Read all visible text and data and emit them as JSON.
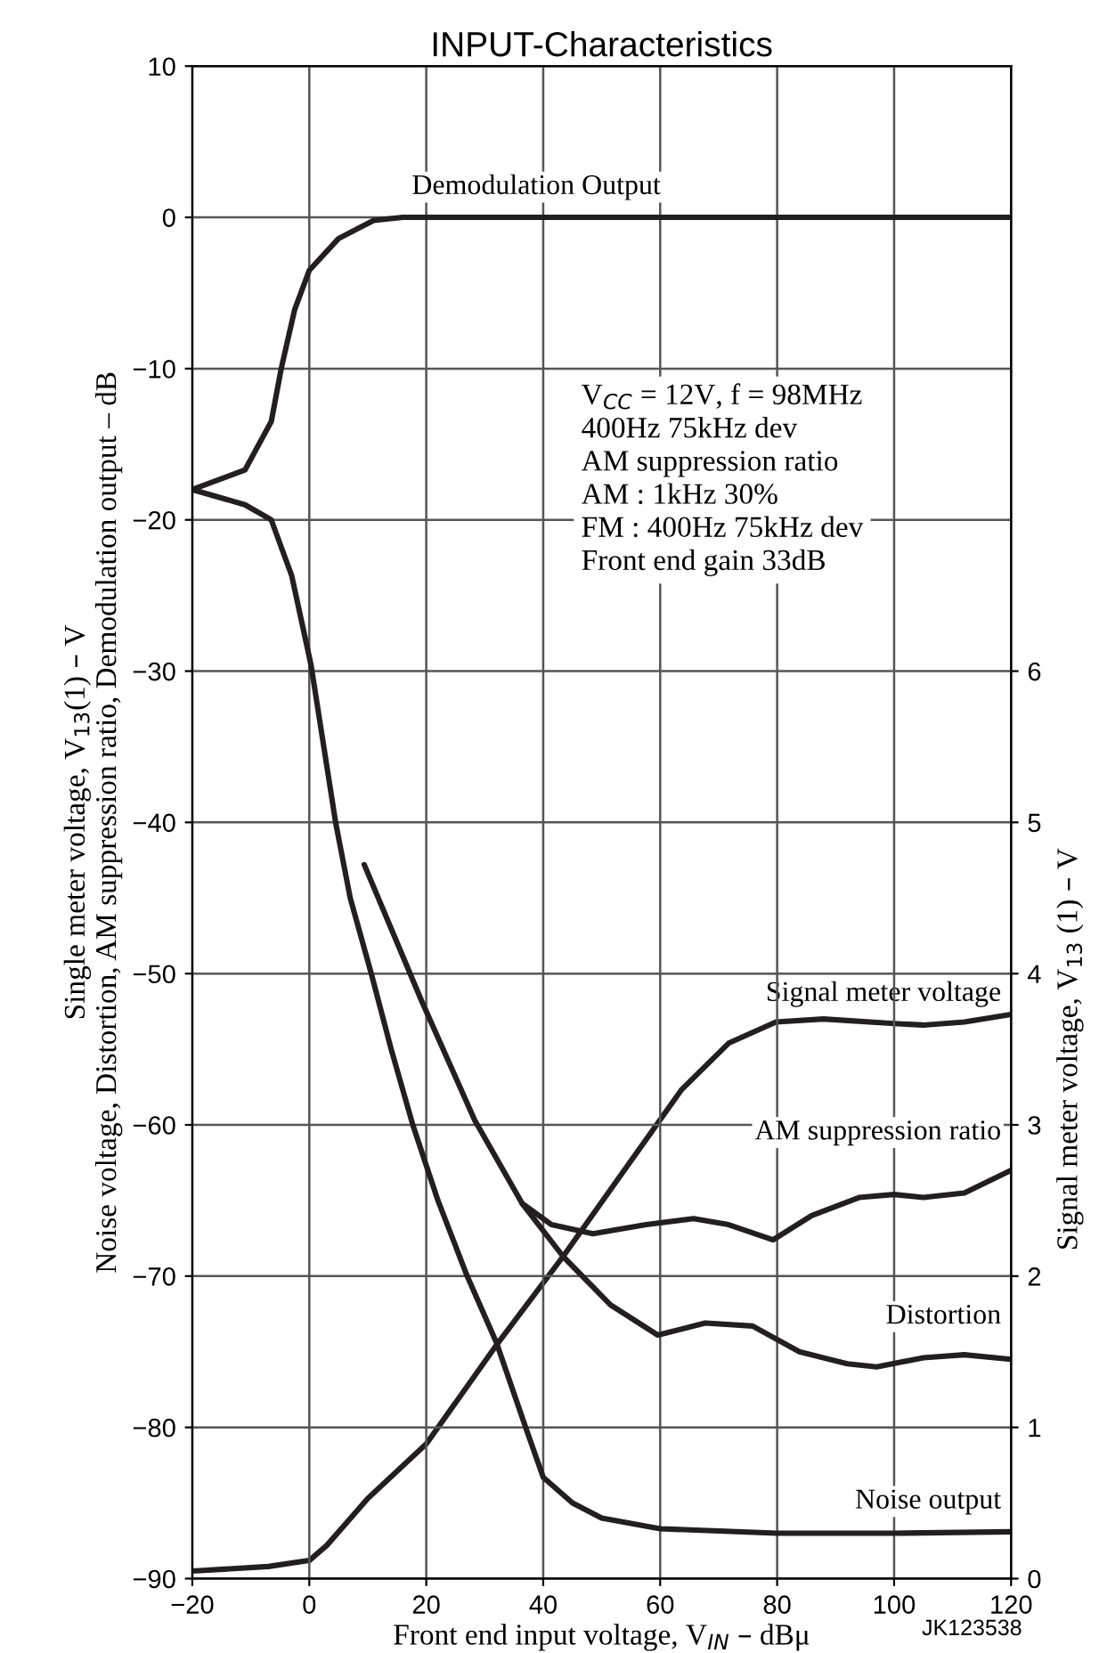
{
  "chart_data": {
    "type": "line",
    "title": "INPUT-Characteristics",
    "xlabel": "Front end input voltage, V$_{IN}$ – dBμ",
    "ylabel": "Single meter voltage, V$_{13}$(1) – V\nNoise voltage, Distortion, AM suppression ratio, Demodulation output – dB",
    "y2label": "Signal meter voltage, V$_{13}$ (1) – V",
    "annotations": [
      "V$_{CC}$ = 12V, f = 98MHz\n400Hz 75kHz dev\nAM suppression ratio\nAM : 1kHz 30%\nFM : 400Hz 75kHz dev\nFront end gain 33dB",
      "JK123538"
    ],
    "xlim": [
      -20,
      120
    ],
    "xticks": [
      -20,
      0,
      20,
      40,
      60,
      80,
      100,
      120
    ],
    "ylim": [
      -90,
      10
    ],
    "yticks": [
      -90,
      -80,
      -70,
      -60,
      -50,
      -40,
      -30,
      -20,
      -10,
      0,
      10
    ],
    "y2lim": [
      0,
      10
    ],
    "y2ticks": [
      0,
      1,
      2,
      3,
      4,
      5,
      6
    ],
    "grid": true,
    "legend": false,
    "marker": "none",
    "line_style": "solid",
    "series": [
      {
        "name": "Demodulation Output",
        "color": "#231f20",
        "x": [
          -20,
          -11,
          -6.5,
          -4.8,
          -2.5,
          0,
          5,
          11,
          16,
          120
        ],
        "values": [
          -18,
          -16.7,
          -13.5,
          -10,
          -6.1,
          -3.5,
          -1.4,
          -0.2,
          0,
          0
        ]
      },
      {
        "name": "Noise output",
        "color": "#231f20",
        "x": [
          -20,
          -11,
          -6.5,
          -3,
          0.3,
          4.5,
          7,
          10.6,
          14,
          17.7,
          22,
          27,
          32,
          37,
          40,
          45,
          50,
          60,
          80,
          100,
          120
        ],
        "values": [
          -18,
          -19,
          -20,
          -23.7,
          -29.6,
          -40,
          -45,
          -50,
          -55,
          -60,
          -65,
          -70,
          -74.4,
          -80,
          -83.3,
          -85,
          -86,
          -86.7,
          -87,
          -87,
          -86.9
        ]
      },
      {
        "name": "Distortion",
        "color": "#231f20",
        "x": [
          9.4,
          19.2,
          28.3,
          36.4,
          43.4,
          51.5,
          59.6,
          67.7,
          75.8,
          83.8,
          92,
          97,
          105,
          112,
          120
        ],
        "values": [
          -42.8,
          -51.8,
          -59.7,
          -65.2,
          -68.7,
          -71.9,
          -73.9,
          -73.1,
          -73.3,
          -75,
          -75.8,
          -76,
          -75.4,
          -75.2,
          -75.5
        ]
      },
      {
        "name": "AM suppression ratio",
        "color": "#231f20",
        "x": [
          36.4,
          41.4,
          48.5,
          57.6,
          65.7,
          71.7,
          79.3,
          85.9,
          94,
          100,
          105,
          112,
          120
        ],
        "values": [
          -65.2,
          -66.6,
          -67.2,
          -66.6,
          -66.2,
          -66.6,
          -67.6,
          -66,
          -64.8,
          -64.6,
          -64.8,
          -64.5,
          -63
        ]
      },
      {
        "name": "Signal meter voltage",
        "color": "#231f20",
        "axis": "y2",
        "x": [
          -20,
          -7,
          0,
          3,
          10,
          20,
          32.3,
          43.4,
          53.5,
          63.6,
          71.7,
          79.8,
          87.9,
          100,
          105,
          112,
          120
        ],
        "values": [
          0.05,
          0.08,
          0.12,
          0.22,
          0.53,
          0.89,
          1.56,
          2.13,
          2.68,
          3.23,
          3.54,
          3.68,
          3.7,
          3.67,
          3.66,
          3.68,
          3.73
        ]
      }
    ]
  }
}
